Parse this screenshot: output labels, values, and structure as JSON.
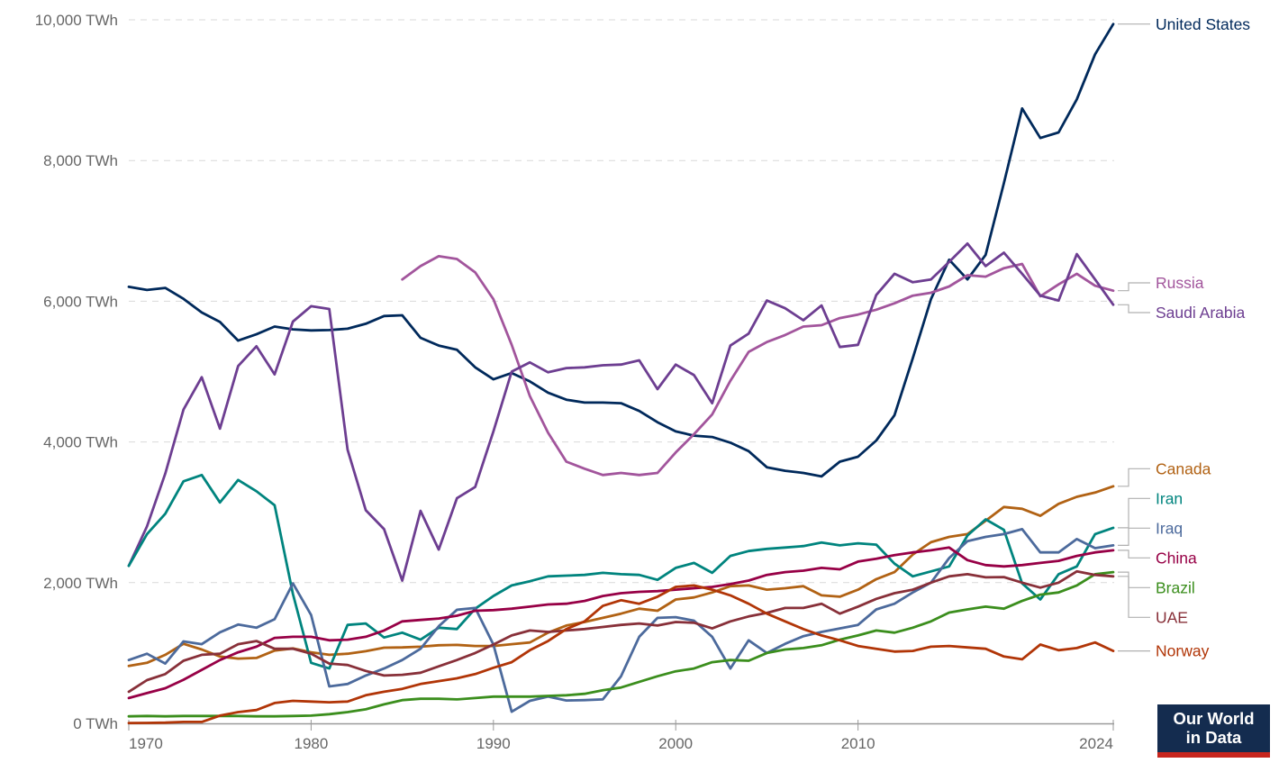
{
  "logo": {
    "line1": "Our World",
    "line2": "in Data",
    "bg_color": "#142C4F",
    "accent_color": "#C7251D"
  },
  "chart_data": {
    "type": "line",
    "title": "",
    "unit": "TWh",
    "grid": "horizontal dashed",
    "legend_position": "right entity labels",
    "xlim": [
      1970,
      2024
    ],
    "ylim": [
      0,
      10000
    ],
    "x_ticks": [
      {
        "year": 1970,
        "label": "1970",
        "align": "start"
      },
      {
        "year": 1980,
        "label": "1980",
        "align": "middle"
      },
      {
        "year": 1990,
        "label": "1990",
        "align": "middle"
      },
      {
        "year": 2000,
        "label": "2000",
        "align": "middle"
      },
      {
        "year": 2010,
        "label": "2010",
        "align": "middle"
      },
      {
        "year": 2024,
        "label": "2024",
        "align": "end"
      }
    ],
    "y_ticks": [
      {
        "value": 0,
        "label": "0 TWh"
      },
      {
        "value": 2000,
        "label": "2,000 TWh"
      },
      {
        "value": 4000,
        "label": "4,000 TWh"
      },
      {
        "value": 6000,
        "label": "6,000 TWh"
      },
      {
        "value": 8000,
        "label": "8,000 TWh"
      },
      {
        "value": 10000,
        "label": "10,000 TWh"
      }
    ],
    "colors": {
      "grid": "#d9d9d9",
      "axis": "#999999",
      "tick_text": "#666666",
      "connector": "#b0b0b0"
    },
    "series": [
      {
        "name": "United States",
        "color": "#00295B",
        "start_year": 1970,
        "values": [
          6205,
          6160,
          6190,
          6035,
          5840,
          5705,
          5440,
          5530,
          5640,
          5600,
          5585,
          5590,
          5610,
          5680,
          5790,
          5800,
          5480,
          5370,
          5310,
          5060,
          4890,
          4980,
          4860,
          4700,
          4600,
          4560,
          4560,
          4550,
          4440,
          4280,
          4150,
          4090,
          4070,
          3990,
          3870,
          3640,
          3590,
          3560,
          3510,
          3720,
          3790,
          4020,
          4380,
          5190,
          6030,
          6590,
          6310,
          6660,
          7680,
          8740,
          8320,
          8400,
          8870,
          9510,
          9940
        ]
      },
      {
        "name": "Russia",
        "color": "#A2559C",
        "start_year": 1985,
        "values": [
          6310,
          6500,
          6640,
          6600,
          6410,
          6030,
          5380,
          4650,
          4130,
          3720,
          3620,
          3530,
          3560,
          3530,
          3560,
          3850,
          4110,
          4390,
          4870,
          5280,
          5420,
          5520,
          5640,
          5660,
          5760,
          5810,
          5880,
          5970,
          6080,
          6120,
          6210,
          6370,
          6350,
          6470,
          6530,
          6070,
          6240,
          6390,
          6220,
          6150
        ]
      },
      {
        "name": "Saudi Arabia",
        "color": "#6D3E91",
        "start_year": 1970,
        "values": [
          2240,
          2800,
          3550,
          4460,
          4920,
          4190,
          5080,
          5360,
          4960,
          5710,
          5930,
          5890,
          3890,
          3030,
          2760,
          2030,
          3020,
          2470,
          3200,
          3360,
          4150,
          5000,
          5130,
          4990,
          5050,
          5060,
          5090,
          5100,
          5160,
          4750,
          5100,
          4950,
          4550,
          5370,
          5540,
          6010,
          5900,
          5730,
          5940,
          5350,
          5380,
          6090,
          6390,
          6270,
          6310,
          6560,
          6820,
          6500,
          6690,
          6390,
          6080,
          6010,
          6670,
          6310,
          5950
        ]
      },
      {
        "name": "Canada",
        "color": "#B16214",
        "start_year": 1970,
        "values": [
          815,
          860,
          975,
          1130,
          1050,
          950,
          920,
          930,
          1035,
          1065,
          1010,
          975,
          990,
          1025,
          1075,
          1080,
          1090,
          1110,
          1115,
          1100,
          1100,
          1125,
          1150,
          1290,
          1390,
          1440,
          1500,
          1560,
          1630,
          1600,
          1760,
          1790,
          1860,
          1950,
          1960,
          1900,
          1920,
          1950,
          1820,
          1800,
          1900,
          2050,
          2150,
          2400,
          2575,
          2650,
          2690,
          2880,
          3075,
          3050,
          2950,
          3120,
          3220,
          3280,
          3370
        ]
      },
      {
        "name": "Iran",
        "color": "#00847E",
        "start_year": 1970,
        "values": [
          2240,
          2690,
          2980,
          3440,
          3530,
          3140,
          3460,
          3300,
          3100,
          1840,
          860,
          780,
          1400,
          1420,
          1220,
          1290,
          1190,
          1360,
          1340,
          1630,
          1810,
          1960,
          2020,
          2090,
          2100,
          2110,
          2140,
          2120,
          2110,
          2040,
          2210,
          2280,
          2140,
          2380,
          2450,
          2480,
          2500,
          2520,
          2570,
          2530,
          2560,
          2540,
          2270,
          2090,
          2160,
          2230,
          2670,
          2900,
          2750,
          1990,
          1760,
          2120,
          2230,
          2690,
          2780
        ]
      },
      {
        "name": "Iraq",
        "color": "#4C6A9C",
        "start_year": 1970,
        "values": [
          900,
          990,
          850,
          1165,
          1125,
          1295,
          1405,
          1360,
          1480,
          1990,
          1540,
          525,
          560,
          680,
          780,
          900,
          1060,
          1380,
          1615,
          1640,
          1120,
          165,
          320,
          380,
          325,
          330,
          340,
          670,
          1230,
          1500,
          1510,
          1460,
          1230,
          780,
          1180,
          1000,
          1130,
          1240,
          1300,
          1350,
          1400,
          1620,
          1700,
          1860,
          2000,
          2350,
          2590,
          2650,
          2690,
          2760,
          2430,
          2430,
          2620,
          2490,
          2530
        ]
      },
      {
        "name": "China",
        "color": "#970046",
        "start_year": 1970,
        "values": [
          360,
          430,
          500,
          620,
          760,
          900,
          1010,
          1090,
          1215,
          1230,
          1230,
          1180,
          1190,
          1230,
          1320,
          1450,
          1470,
          1490,
          1530,
          1600,
          1610,
          1630,
          1660,
          1690,
          1700,
          1740,
          1810,
          1850,
          1870,
          1880,
          1900,
          1920,
          1940,
          1980,
          2030,
          2110,
          2150,
          2170,
          2210,
          2190,
          2300,
          2340,
          2390,
          2430,
          2460,
          2500,
          2320,
          2250,
          2230,
          2250,
          2280,
          2310,
          2380,
          2430,
          2460
        ]
      },
      {
        "name": "Brazil",
        "color": "#3B8E1D",
        "start_year": 1970,
        "values": [
          100,
          105,
          100,
          105,
          105,
          105,
          105,
          100,
          100,
          105,
          110,
          130,
          160,
          200,
          270,
          330,
          350,
          350,
          340,
          360,
          380,
          380,
          380,
          390,
          400,
          420,
          470,
          510,
          590,
          670,
          740,
          780,
          870,
          900,
          890,
          1000,
          1050,
          1070,
          1110,
          1190,
          1250,
          1320,
          1290,
          1360,
          1450,
          1575,
          1620,
          1660,
          1630,
          1740,
          1830,
          1860,
          1960,
          2120,
          2150
        ]
      },
      {
        "name": "UAE",
        "color": "#883039",
        "start_year": 1970,
        "values": [
          450,
          615,
          700,
          890,
          975,
          990,
          1125,
          1170,
          1060,
          1060,
          990,
          850,
          830,
          745,
          680,
          690,
          720,
          810,
          900,
          1000,
          1120,
          1250,
          1320,
          1300,
          1320,
          1340,
          1370,
          1400,
          1420,
          1390,
          1440,
          1430,
          1350,
          1450,
          1520,
          1570,
          1640,
          1640,
          1700,
          1560,
          1660,
          1770,
          1850,
          1900,
          2000,
          2090,
          2120,
          2075,
          2080,
          2000,
          1930,
          2000,
          2160,
          2110,
          2090
        ]
      },
      {
        "name": "Norway",
        "color": "#B13507",
        "start_year": 1970,
        "values": [
          5,
          6,
          10,
          20,
          20,
          110,
          160,
          190,
          290,
          320,
          310,
          300,
          310,
          400,
          450,
          490,
          560,
          600,
          640,
          700,
          790,
          870,
          1040,
          1170,
          1340,
          1450,
          1670,
          1750,
          1700,
          1800,
          1940,
          1960,
          1900,
          1820,
          1700,
          1560,
          1450,
          1340,
          1250,
          1180,
          1100,
          1060,
          1020,
          1030,
          1090,
          1100,
          1080,
          1060,
          950,
          910,
          1120,
          1040,
          1070,
          1150,
          1030
        ]
      }
    ]
  }
}
